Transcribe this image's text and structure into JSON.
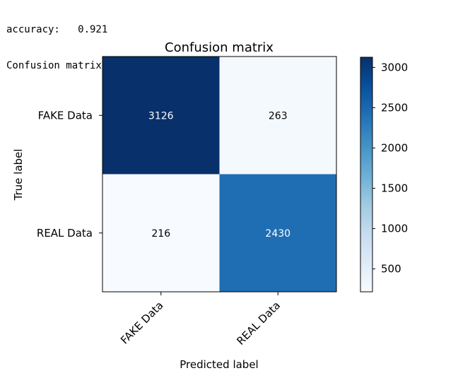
{
  "console": {
    "accuracy_line": "accuracy:   0.921",
    "subtitle_line": "Confusion matrix, without normalization"
  },
  "chart_data": {
    "type": "heatmap",
    "title": "Confusion matrix",
    "xlabel": "Predicted label",
    "ylabel": "True label",
    "row_labels": [
      "FAKE Data",
      "REAL Data"
    ],
    "col_labels": [
      "FAKE Data",
      "REAL Data"
    ],
    "values": [
      [
        3126,
        263
      ],
      [
        216,
        2430
      ]
    ],
    "colormap": "Blues",
    "colorbar": {
      "min": 216,
      "max": 3126,
      "ticks": [
        500,
        1000,
        1500,
        2000,
        2500,
        3000
      ]
    }
  }
}
